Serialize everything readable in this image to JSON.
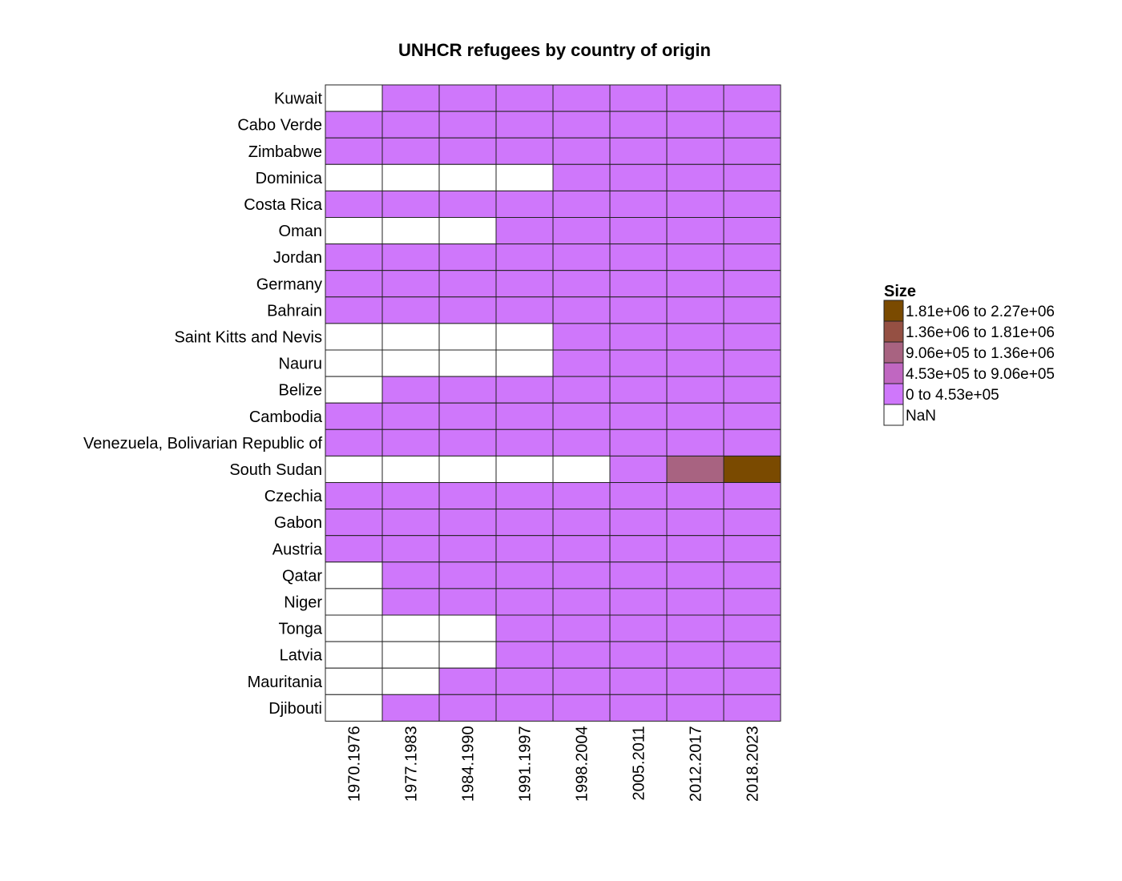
{
  "chart_data": {
    "type": "heatmap",
    "title": "UNHCR refugees by country of origin",
    "xlabel": "",
    "ylabel": "",
    "legend_title": "Size",
    "columns": [
      "1970.1976",
      "1977.1983",
      "1984.1990",
      "1991.1997",
      "1998.2004",
      "2005.2011",
      "2012.2017",
      "2018.2023"
    ],
    "rows": [
      "Kuwait",
      "Cabo Verde",
      "Zimbabwe",
      "Dominica",
      "Costa Rica",
      "Oman",
      "Jordan",
      "Germany",
      "Bahrain",
      "Saint Kitts and Nevis",
      "Nauru",
      "Belize",
      "Cambodia",
      "Venezuela, Bolivarian Republic of",
      "South Sudan",
      "Czechia",
      "Gabon",
      "Austria",
      "Qatar",
      "Niger",
      "Tonga",
      "Latvia",
      "Mauritania",
      "Djibouti"
    ],
    "bins": [
      {
        "label": "1.81e+06  to  2.27e+06",
        "color": "#7a4a00"
      },
      {
        "label": "1.36e+06  to  1.81e+06",
        "color": "#955043"
      },
      {
        "label": "9.06e+05  to  1.36e+06",
        "color": "#a86381"
      },
      {
        "label": "4.53e+05  to  9.06e+05",
        "color": "#c067c1"
      },
      {
        "label": "0  to  4.53e+05",
        "color": "#cf77fb"
      },
      {
        "label": "NaN",
        "color": "#ffffff"
      }
    ],
    "cells": [
      [
        5,
        4,
        4,
        4,
        4,
        4,
        4,
        4
      ],
      [
        4,
        4,
        4,
        4,
        4,
        4,
        4,
        4
      ],
      [
        4,
        4,
        4,
        4,
        4,
        4,
        4,
        4
      ],
      [
        5,
        5,
        5,
        5,
        4,
        4,
        4,
        4
      ],
      [
        4,
        4,
        4,
        4,
        4,
        4,
        4,
        4
      ],
      [
        5,
        5,
        5,
        4,
        4,
        4,
        4,
        4
      ],
      [
        4,
        4,
        4,
        4,
        4,
        4,
        4,
        4
      ],
      [
        4,
        4,
        4,
        4,
        4,
        4,
        4,
        4
      ],
      [
        4,
        4,
        4,
        4,
        4,
        4,
        4,
        4
      ],
      [
        5,
        5,
        5,
        5,
        4,
        4,
        4,
        4
      ],
      [
        5,
        5,
        5,
        5,
        4,
        4,
        4,
        4
      ],
      [
        5,
        4,
        4,
        4,
        4,
        4,
        4,
        4
      ],
      [
        4,
        4,
        4,
        4,
        4,
        4,
        4,
        4
      ],
      [
        4,
        4,
        4,
        4,
        4,
        4,
        4,
        4
      ],
      [
        5,
        5,
        5,
        5,
        5,
        4,
        2,
        0
      ],
      [
        4,
        4,
        4,
        4,
        4,
        4,
        4,
        4
      ],
      [
        4,
        4,
        4,
        4,
        4,
        4,
        4,
        4
      ],
      [
        4,
        4,
        4,
        4,
        4,
        4,
        4,
        4
      ],
      [
        5,
        4,
        4,
        4,
        4,
        4,
        4,
        4
      ],
      [
        5,
        4,
        4,
        4,
        4,
        4,
        4,
        4
      ],
      [
        5,
        5,
        5,
        4,
        4,
        4,
        4,
        4
      ],
      [
        5,
        5,
        5,
        4,
        4,
        4,
        4,
        4
      ],
      [
        5,
        5,
        4,
        4,
        4,
        4,
        4,
        4
      ],
      [
        5,
        4,
        4,
        4,
        4,
        4,
        4,
        4
      ]
    ]
  }
}
